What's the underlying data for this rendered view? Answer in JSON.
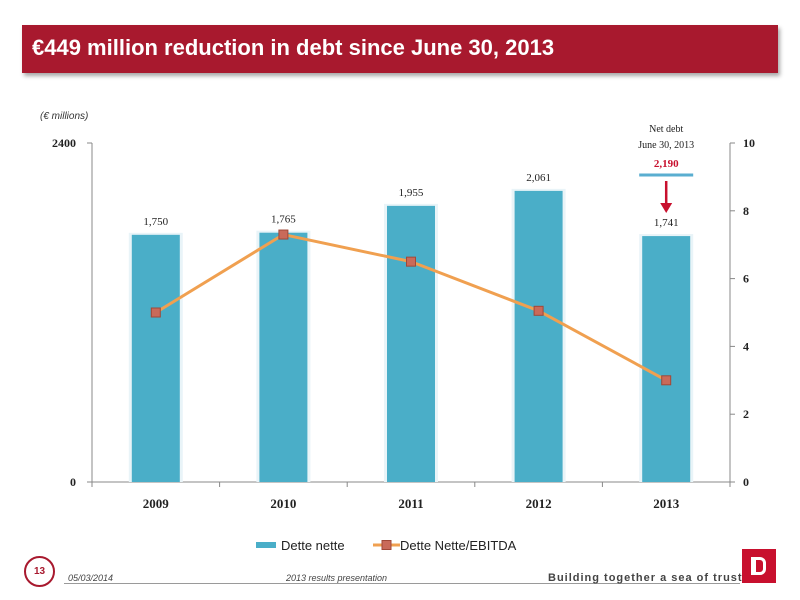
{
  "title": "€449 million reduction in debt since June 30, 2013",
  "footer": {
    "page_number": "13",
    "date": "05/03/2014",
    "presentation": "2013 results presentation",
    "tagline": "Building together a sea of trust"
  },
  "colors": {
    "title_bar": "#a8192e",
    "bar": "#4aaec8",
    "line": "#f0a050",
    "marker": "#c96a5a",
    "accent_red": "#c8102e",
    "annotation_line": "#5aaed0"
  },
  "chart_data": {
    "type": "bar",
    "unit_label": "(€ millions)",
    "categories": [
      "2009",
      "2010",
      "2011",
      "2012",
      "2013"
    ],
    "series": [
      {
        "name": "Dette nette",
        "type": "bar",
        "axis": "left",
        "values": [
          1750,
          1765,
          1955,
          2061,
          1741
        ],
        "labels": [
          "1,750",
          "1,765",
          "1,955",
          "2,061",
          "1,741"
        ]
      },
      {
        "name": "Dette Nette/EBITDA",
        "type": "line",
        "axis": "right",
        "values": [
          5.0,
          7.3,
          6.5,
          5.05,
          3.0
        ]
      }
    ],
    "y_left": {
      "min": 0,
      "max": 2400,
      "tick_labels": [
        "0",
        "2400"
      ]
    },
    "y_right": {
      "min": 0,
      "max": 10,
      "tick_labels": [
        "0",
        "2",
        "4",
        "6",
        "8",
        "10"
      ]
    },
    "annotation": {
      "line1": "Net debt",
      "line2": "June 30, 2013",
      "value": "2,190",
      "category": "2013"
    },
    "legend_position": "bottom"
  }
}
